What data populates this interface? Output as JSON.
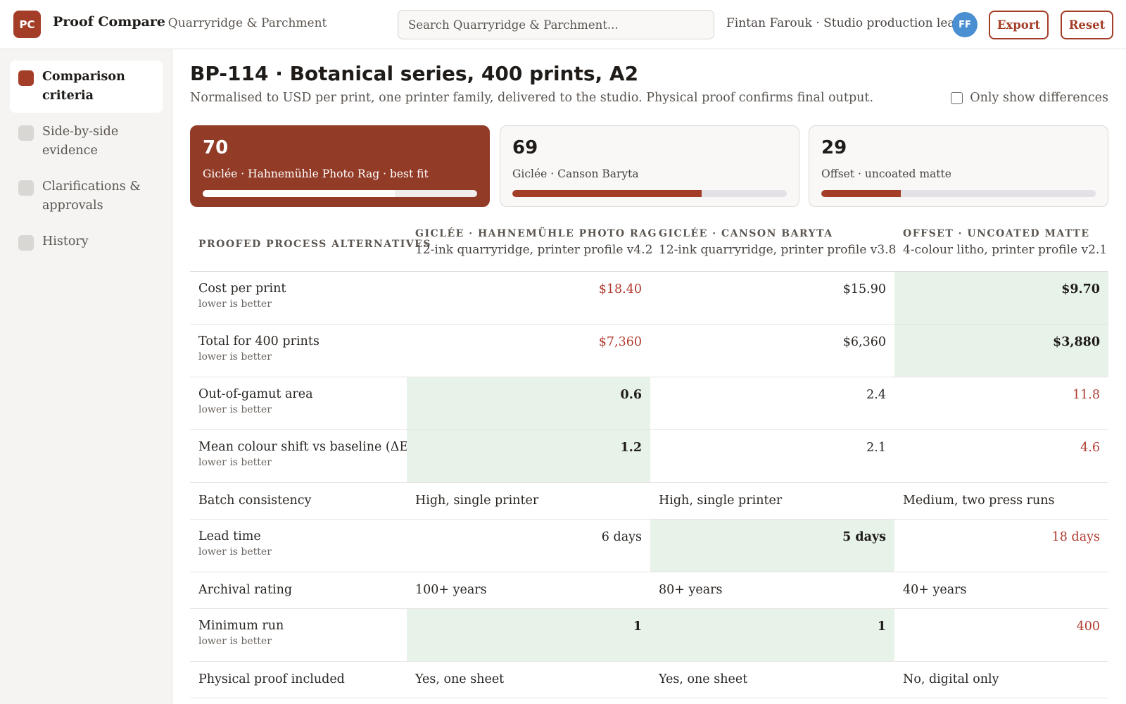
{
  "header": {
    "logo_text": "PC",
    "app_title": "Proof Compare",
    "company": "· Quarryridge & Parchment",
    "search_placeholder": "Search Quarryridge & Parchment...",
    "user": "Fintan Farouk · Studio production lead",
    "avatar_initials": "FF",
    "export_label": "Export",
    "reset_label": "Reset"
  },
  "sidebar": {
    "items": [
      {
        "label": "Comparison criteria",
        "active": true
      },
      {
        "label": "Side-by-side evidence",
        "active": false
      },
      {
        "label": "Clarifications & approvals",
        "active": false
      },
      {
        "label": "History",
        "active": false
      }
    ]
  },
  "main": {
    "title": "BP-114 · Botanical series, 400 prints, A2",
    "subtitle": "Normalised to USD per print, one printer family, delivered to the studio. Physical proof confirms final output.",
    "toggle_label": "Only show differences",
    "toggle_checked": false
  },
  "cards": [
    {
      "score": "70",
      "label": "Giclée · Hahnemühle Photo Rag · best fit",
      "fill_fraction": 0.7,
      "best": true
    },
    {
      "score": "69",
      "label": "Giclée · Canson Baryta",
      "fill_fraction": 0.69,
      "best": false
    },
    {
      "score": "29",
      "label": "Offset · uncoated matte",
      "fill_fraction": 0.29,
      "best": false
    }
  ],
  "table": {
    "first_header": "Proofed process alternatives",
    "columns": [
      {
        "name": "Giclée · Hahnemühle Photo Rag",
        "sub": "12-ink quarryridge, printer profile v4.2"
      },
      {
        "name": "Giclée · Canson Baryta",
        "sub": "12-ink quarryridge, printer profile v3.8"
      },
      {
        "name": "Offset · uncoated matte",
        "sub": "4-colour litho, printer profile v2.1"
      }
    ],
    "rows": [
      {
        "label": "Cost per print",
        "hint": "lower is better",
        "values": [
          "$18.40",
          "$15.90",
          "$9.70"
        ]
      },
      {
        "label": "Total for 400 prints",
        "hint": "lower is better",
        "values": [
          "$7,360",
          "$6,360",
          "$3,880"
        ]
      },
      {
        "label": "Out-of-gamut area",
        "hint": "lower is better",
        "values": [
          "0.6",
          "2.4",
          "11.8"
        ]
      },
      {
        "label": "Mean colour shift vs baseline (ΔE)",
        "hint": "lower is better",
        "values": [
          "1.2",
          "2.1",
          "4.6"
        ]
      },
      {
        "label": "Batch consistency",
        "hint": "",
        "values": [
          "High, single printer",
          "High, single printer",
          "Medium, two press runs"
        ]
      },
      {
        "label": "Lead time",
        "hint": "lower is better",
        "values": [
          "6 days",
          "5  days",
          "18 days"
        ]
      },
      {
        "label": "Archival rating",
        "hint": "",
        "values": [
          "100+ years",
          "80+ years",
          "40+ years"
        ]
      },
      {
        "label": "Minimum run",
        "hint": "lower is better",
        "values": [
          "1",
          "1",
          "400"
        ]
      },
      {
        "label": "Physical proof included",
        "hint": "",
        "values": [
          "Yes, one sheet",
          "Yes, one sheet",
          "No, digital only"
        ]
      }
    ]
  },
  "colors": {
    "accent": "#a33d27",
    "best_card": "#923b27",
    "best_cell": "#e7f2e8",
    "worst_text": "#b23a2e",
    "avatar": "#4a8fd1"
  }
}
